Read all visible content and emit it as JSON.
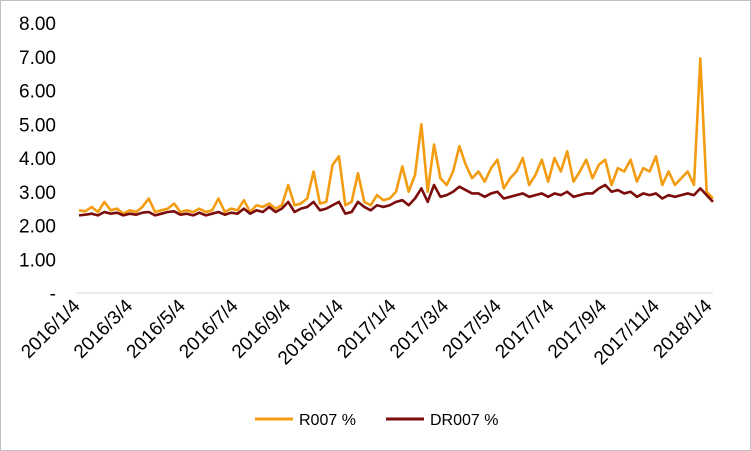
{
  "chart_data": {
    "type": "line",
    "title": "",
    "xlabel": "",
    "ylabel": "",
    "ylim": [
      0,
      8
    ],
    "y_ticks": [
      "-",
      "1.00",
      "2.00",
      "3.00",
      "4.00",
      "5.00",
      "6.00",
      "7.00",
      "8.00"
    ],
    "x_ticks": [
      "2016/1/4",
      "2016/3/4",
      "2016/5/4",
      "2016/7/4",
      "2016/9/4",
      "2016/11/4",
      "2017/1/4",
      "2017/3/4",
      "2017/5/4",
      "2017/7/4",
      "2017/9/4",
      "2017/11/4",
      "2018/1/4"
    ],
    "legend_position": "bottom",
    "grid": false,
    "series": [
      {
        "name": "R007 %",
        "color": "#f39c12",
        "values": [
          2.45,
          2.42,
          2.55,
          2.4,
          2.7,
          2.45,
          2.5,
          2.35,
          2.45,
          2.4,
          2.55,
          2.8,
          2.4,
          2.45,
          2.5,
          2.65,
          2.4,
          2.45,
          2.4,
          2.5,
          2.4,
          2.45,
          2.8,
          2.4,
          2.5,
          2.45,
          2.75,
          2.4,
          2.6,
          2.55,
          2.65,
          2.5,
          2.6,
          3.2,
          2.6,
          2.65,
          2.8,
          3.6,
          2.65,
          2.7,
          3.8,
          4.05,
          2.6,
          2.7,
          3.55,
          2.7,
          2.6,
          2.9,
          2.75,
          2.8,
          3.0,
          3.75,
          3.0,
          3.5,
          5.0,
          3.0,
          4.4,
          3.4,
          3.2,
          3.6,
          4.35,
          3.8,
          3.4,
          3.6,
          3.3,
          3.7,
          3.95,
          3.1,
          3.4,
          3.6,
          4.0,
          3.2,
          3.5,
          3.95,
          3.3,
          4.0,
          3.6,
          4.2,
          3.3,
          3.6,
          3.95,
          3.4,
          3.8,
          3.95,
          3.2,
          3.7,
          3.6,
          3.95,
          3.3,
          3.7,
          3.6,
          4.05,
          3.2,
          3.6,
          3.2,
          3.4,
          3.6,
          3.2,
          6.95,
          3.0,
          2.8
        ]
      },
      {
        "name": "DR007 %",
        "color": "#7b0d0d",
        "values": [
          2.3,
          2.32,
          2.35,
          2.3,
          2.4,
          2.35,
          2.38,
          2.3,
          2.35,
          2.32,
          2.38,
          2.4,
          2.3,
          2.35,
          2.4,
          2.42,
          2.32,
          2.35,
          2.3,
          2.38,
          2.3,
          2.35,
          2.4,
          2.32,
          2.38,
          2.35,
          2.5,
          2.35,
          2.45,
          2.4,
          2.55,
          2.4,
          2.5,
          2.7,
          2.4,
          2.5,
          2.55,
          2.7,
          2.45,
          2.5,
          2.6,
          2.7,
          2.35,
          2.4,
          2.7,
          2.55,
          2.45,
          2.6,
          2.55,
          2.6,
          2.7,
          2.75,
          2.6,
          2.8,
          3.1,
          2.7,
          3.2,
          2.85,
          2.9,
          3.0,
          3.15,
          3.05,
          2.95,
          2.95,
          2.85,
          2.95,
          3.0,
          2.8,
          2.85,
          2.9,
          2.95,
          2.85,
          2.9,
          2.95,
          2.85,
          2.95,
          2.9,
          3.0,
          2.85,
          2.9,
          2.95,
          2.95,
          3.1,
          3.2,
          3.0,
          3.05,
          2.95,
          3.0,
          2.85,
          2.95,
          2.9,
          2.95,
          2.8,
          2.9,
          2.85,
          2.9,
          2.95,
          2.9,
          3.1,
          2.9,
          2.7
        ]
      }
    ]
  }
}
